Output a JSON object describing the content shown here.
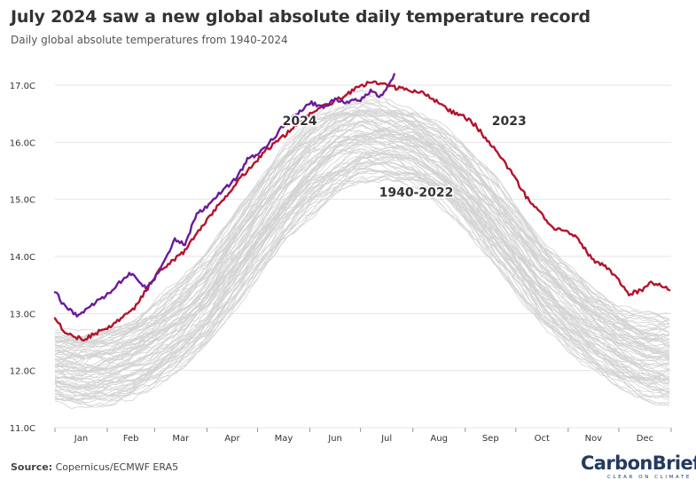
{
  "header": {
    "title": "July 2024 saw a new global absolute daily temperature record",
    "subtitle": "Daily global absolute temperatures from 1940-2024"
  },
  "footer": {
    "source_label": "Source:",
    "source_text": "Copernicus/ECMWF ERA5",
    "logo_text": "CarbonBrief",
    "logo_tagline": "CLEAR ON CLIMATE"
  },
  "colors": {
    "series_2024": "#6a1b9a",
    "series_2023": "#b5122b",
    "historical": "#d3d3d3",
    "grid": "#e6e6e6",
    "axis_text": "#333333",
    "logo": "#243a5e"
  },
  "chart_data": {
    "type": "line",
    "title": "July 2024 saw a new global absolute daily temperature record",
    "subtitle": "Daily global absolute temperatures from 1940-2024",
    "x_unit": "day of year",
    "x_range": [
      1,
      366
    ],
    "ylim": [
      11.0,
      17.0
    ],
    "y_ticks": [
      11.0,
      12.0,
      13.0,
      14.0,
      15.0,
      16.0,
      17.0
    ],
    "y_tick_labels": [
      "11.0C",
      "12.0C",
      "13.0C",
      "14.0C",
      "15.0C",
      "16.0C",
      "17.0C"
    ],
    "x_tick_labels": [
      "Jan",
      "Feb",
      "Mar",
      "Apr",
      "May",
      "Jun",
      "Jul",
      "Aug",
      "Sep",
      "Oct",
      "Nov",
      "Dec"
    ],
    "grid": "horizontal",
    "annotations": [
      {
        "text": "2024",
        "series": "2024"
      },
      {
        "text": "2023",
        "series": "2023"
      },
      {
        "text": "1940-2022",
        "series": "historical"
      }
    ],
    "series": [
      {
        "name": "2024",
        "x": [
          1,
          5,
          10,
          15,
          20,
          25,
          31,
          38,
          45,
          50,
          55,
          60,
          66,
          72,
          78,
          85,
          92,
          100,
          108,
          115,
          122,
          130,
          138,
          145,
          152,
          160,
          167,
          175,
          182,
          188,
          194,
          198,
          202
        ],
        "values": [
          13.4,
          13.2,
          13.05,
          12.95,
          13.1,
          13.2,
          13.3,
          13.5,
          13.7,
          13.6,
          13.45,
          13.6,
          13.95,
          14.3,
          14.2,
          14.75,
          14.9,
          15.15,
          15.35,
          15.7,
          15.8,
          16.05,
          16.35,
          16.5,
          16.7,
          16.6,
          16.75,
          16.7,
          16.75,
          16.9,
          16.8,
          16.95,
          17.16
        ]
      },
      {
        "name": "2023",
        "x": [
          1,
          6,
          12,
          18,
          25,
          32,
          40,
          48,
          55,
          62,
          70,
          78,
          86,
          94,
          102,
          110,
          118,
          126,
          134,
          142,
          150,
          158,
          165,
          172,
          180,
          188,
          195,
          203,
          211,
          219,
          227,
          235,
          243,
          250,
          258,
          266,
          273,
          280,
          288,
          296,
          303,
          311,
          319,
          326,
          334,
          341,
          348,
          354,
          360,
          365
        ],
        "values": [
          12.95,
          12.7,
          12.6,
          12.55,
          12.65,
          12.75,
          12.9,
          13.1,
          13.4,
          13.75,
          13.9,
          14.1,
          14.45,
          14.75,
          15.05,
          15.35,
          15.6,
          15.85,
          16.05,
          16.25,
          16.45,
          16.6,
          16.7,
          16.8,
          16.95,
          17.05,
          17.02,
          16.95,
          16.92,
          16.85,
          16.72,
          16.55,
          16.45,
          16.3,
          16.0,
          15.7,
          15.4,
          15.05,
          14.8,
          14.5,
          14.45,
          14.3,
          13.95,
          13.85,
          13.6,
          13.35,
          13.4,
          13.55,
          13.5,
          13.4
        ]
      },
      {
        "name": "1940-2022",
        "band_x": [
          1,
          15,
          31,
          46,
          60,
          75,
          91,
          106,
          121,
          136,
          152,
          167,
          182,
          197,
          213,
          228,
          244,
          259,
          274,
          289,
          305,
          320,
          335,
          350,
          366
        ],
        "band_low": [
          11.45,
          11.35,
          11.4,
          11.5,
          11.7,
          12.0,
          12.45,
          13.0,
          13.6,
          14.2,
          14.7,
          15.05,
          15.3,
          15.35,
          15.25,
          14.95,
          14.5,
          13.95,
          13.4,
          12.8,
          12.35,
          12.0,
          11.7,
          11.5,
          11.4
        ],
        "band_high": [
          12.7,
          12.7,
          12.8,
          12.95,
          13.2,
          13.6,
          14.1,
          14.7,
          15.3,
          15.9,
          16.4,
          16.7,
          16.85,
          16.75,
          16.6,
          16.35,
          15.95,
          15.45,
          14.85,
          14.3,
          13.85,
          13.45,
          13.15,
          13.0,
          13.0
        ]
      }
    ]
  }
}
